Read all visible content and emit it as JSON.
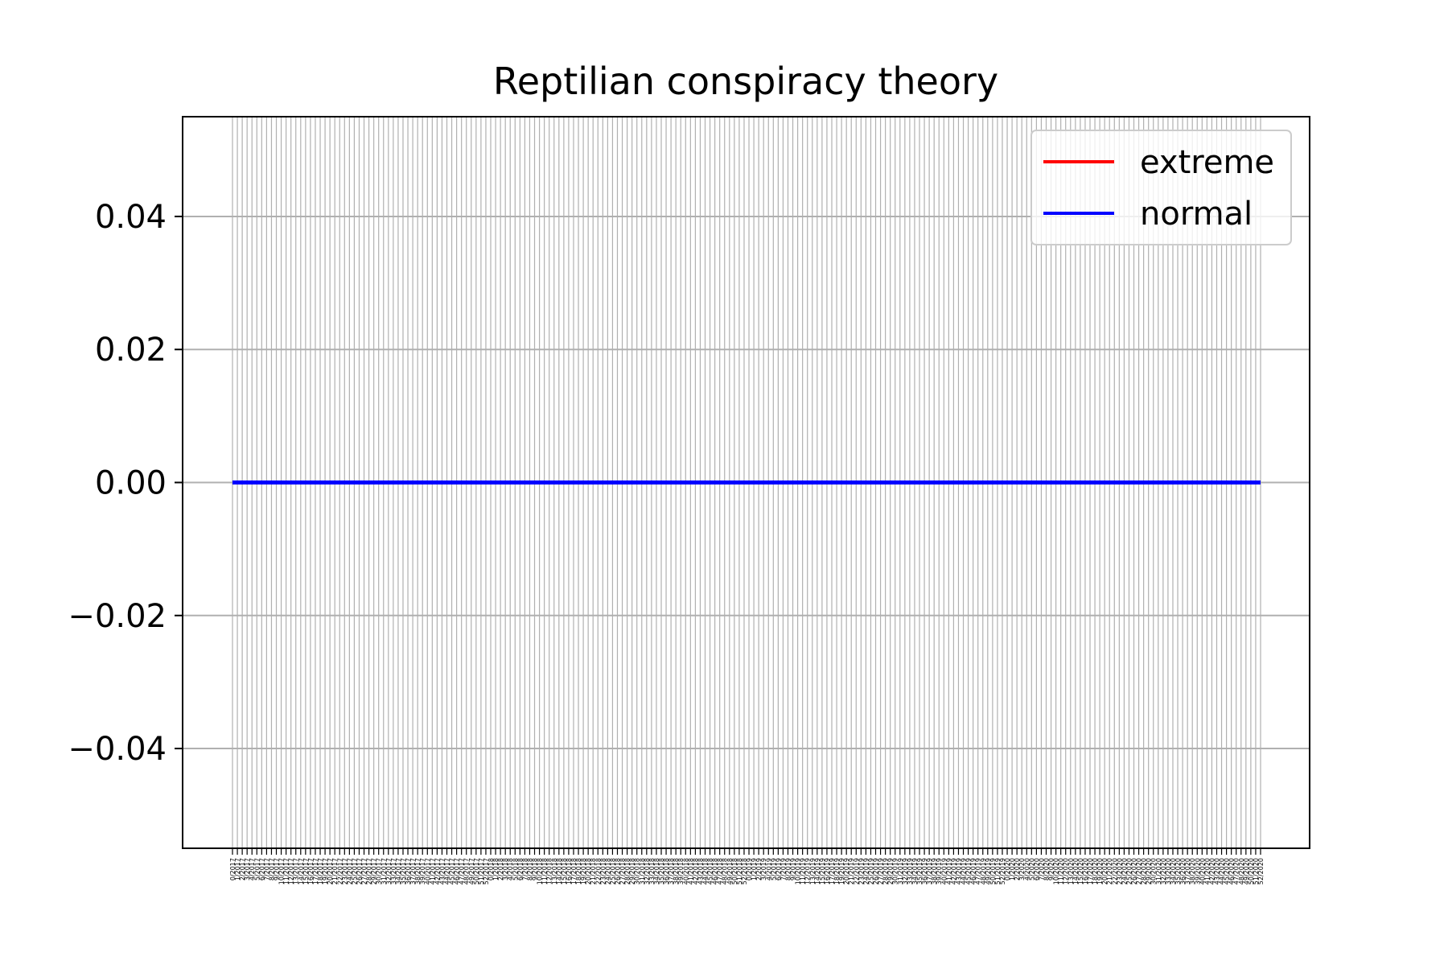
{
  "chart_data": {
    "type": "line",
    "title": "Reptilian conspiracy theory",
    "xlabel": "",
    "ylabel": "",
    "ylim": [
      -0.055,
      0.055
    ],
    "yticks": [
      -0.04,
      -0.02,
      0.0,
      0.02,
      0.04
    ],
    "ytick_labels": [
      "−0.04",
      "−0.02",
      "0.00",
      "0.02",
      "0.04"
    ],
    "grid": true,
    "legend_position": "top-right",
    "x_start_week": 0,
    "x_start_year": 2017,
    "x_end_week": 52,
    "x_end_year": 2020,
    "x_weeks_per_year": 53,
    "series": [
      {
        "name": "extreme",
        "color": "#ff0000",
        "constant_value": 0.0
      },
      {
        "name": "normal",
        "color": "#0000ff",
        "constant_value": 0.0
      }
    ]
  }
}
